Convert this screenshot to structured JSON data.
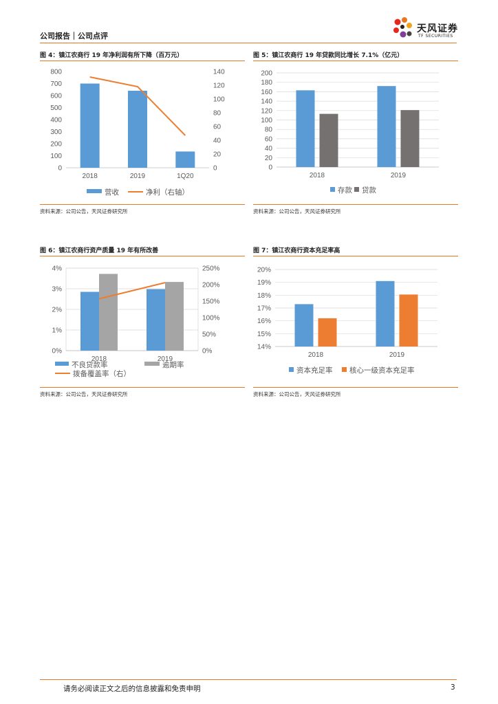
{
  "header": {
    "left": "公司报告｜公司点评",
    "logo_text": "天风证券",
    "logo_sub": "TF SECURITIES"
  },
  "colors": {
    "accent": "#e87722",
    "blue": "#5b9bd5",
    "orange": "#ed7d31",
    "gray": "#a5a5a5",
    "darkgray": "#767171"
  },
  "figures": {
    "fig4": {
      "title": "图 4：镇江农商行 19 年净利润有所下降（百万元）",
      "source": "资料来源：公司公告，天风证券研究所"
    },
    "fig5": {
      "title": "图 5：镇江农商行 19 年贷款同比增长 7.1%（亿元）",
      "source": "资料来源：公司公告，天风证券研究所"
    },
    "fig6": {
      "title": "图 6：镇江农商行资产质量 19 年有所改善",
      "source": "资料来源：公司公告，天风证券研究所"
    },
    "fig7": {
      "title": "图 7：镇江农商行资本充足率高",
      "source": "资料来源：公司公告，天风证券研究所"
    }
  },
  "chart_data": [
    {
      "type": "bar",
      "categories": [
        "2018",
        "2019",
        "1Q20"
      ],
      "series": [
        {
          "name": "营收",
          "kind": "bar",
          "axis": "left",
          "values": [
            700,
            640,
            135
          ]
        },
        {
          "name": "净利（右轴）",
          "kind": "line",
          "axis": "right",
          "values": [
            132,
            118,
            47
          ]
        }
      ],
      "ylim": [
        0,
        800
      ],
      "yticks": [
        "0",
        "100",
        "200",
        "300",
        "400",
        "500",
        "600",
        "700",
        "800"
      ],
      "y2lim": [
        0,
        140
      ],
      "y2ticks": [
        "0",
        "20",
        "40",
        "60",
        "80",
        "100",
        "120",
        "140"
      ],
      "legend": "bottom"
    },
    {
      "type": "bar",
      "categories": [
        "2018",
        "2019"
      ],
      "series": [
        {
          "name": "存款",
          "values": [
            163,
            172
          ]
        },
        {
          "name": "贷款",
          "values": [
            113,
            121
          ]
        }
      ],
      "ylim": [
        0,
        200
      ],
      "yticks": [
        "0",
        "20",
        "40",
        "60",
        "80",
        "100",
        "120",
        "140",
        "160",
        "180",
        "200"
      ],
      "legend": "bottom"
    },
    {
      "type": "bar",
      "categories": [
        "2018",
        "2019"
      ],
      "series": [
        {
          "name": "不良贷款率",
          "kind": "bar",
          "axis": "left",
          "values": [
            2.85,
            2.98
          ]
        },
        {
          "name": "逾期率",
          "kind": "bar",
          "axis": "left",
          "values": [
            3.72,
            3.33
          ]
        },
        {
          "name": "拨备覆盖率（右）",
          "kind": "line",
          "axis": "right",
          "values": [
            157,
            206
          ]
        }
      ],
      "ylim": [
        0,
        4
      ],
      "yticks": [
        "0%",
        "1%",
        "2%",
        "3%",
        "4%"
      ],
      "y2lim": [
        0,
        250
      ],
      "y2ticks": [
        "0%",
        "50%",
        "100%",
        "150%",
        "200%",
        "250%"
      ],
      "legend": "bottom"
    },
    {
      "type": "bar",
      "categories": [
        "2018",
        "2019"
      ],
      "series": [
        {
          "name": "资本充足率",
          "values": [
            17.3,
            19.1
          ]
        },
        {
          "name": "核心一级资本充足率",
          "values": [
            16.2,
            18.05
          ]
        }
      ],
      "ylim": [
        14,
        20
      ],
      "yticks": [
        "14%",
        "15%",
        "16%",
        "17%",
        "18%",
        "19%",
        "20%"
      ],
      "legend": "bottom"
    }
  ],
  "footer": {
    "disclaimer": "请务必阅读正文之后的信息披露和免责申明",
    "page": "3"
  }
}
